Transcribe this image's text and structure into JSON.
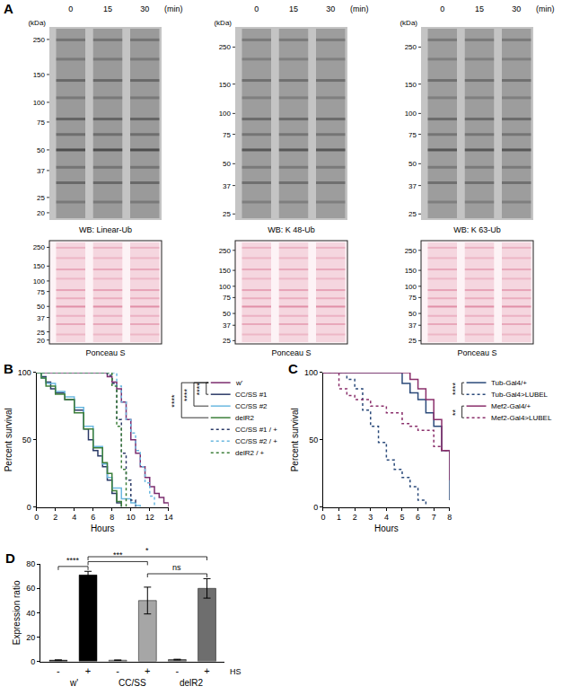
{
  "blots": {
    "label": "A",
    "times": [
      "0",
      "15",
      "30"
    ],
    "time_unit": "(min)",
    "kda_label": "(kDa)",
    "panels": [
      {
        "caption": "WB: Linear-Ub",
        "markers": [
          250,
          150,
          100,
          75,
          50,
          37,
          25,
          20
        ],
        "range": [
          300,
          18
        ],
        "color": "#2e2e2e",
        "ponceau": {
          "caption": "Ponceau S",
          "markers": [
            250,
            150,
            100,
            75,
            50,
            37,
            25,
            20
          ],
          "range": [
            300,
            18
          ],
          "color": "#d9708f"
        }
      },
      {
        "caption": "WB: K 48-Ub",
        "markers": [
          250,
          150,
          100,
          75,
          50,
          37,
          25
        ],
        "range": [
          330,
          23
        ],
        "color": "#3a3a3a",
        "ponceau": {
          "caption": "Ponceau S",
          "markers": [
            250,
            150,
            100,
            75,
            50,
            37,
            25
          ],
          "range": [
            320,
            23
          ],
          "color": "#d9708f"
        }
      },
      {
        "caption": "WB: K 63-Ub",
        "markers": [
          250,
          150,
          100,
          75,
          50,
          37,
          25
        ],
        "range": [
          330,
          23
        ],
        "color": "#3a3a3a",
        "ponceau": {
          "caption": "Ponceau S",
          "markers": [
            250,
            150,
            100,
            75,
            50,
            37,
            25
          ],
          "range": [
            320,
            23
          ],
          "color": "#d9708f"
        }
      }
    ]
  },
  "chart_data": [
    {
      "label": "B",
      "type": "step",
      "x_label": "Hours",
      "y_label": "Percent survival",
      "xlim": [
        0,
        14
      ],
      "xticks": [
        0,
        2,
        4,
        6,
        8,
        10,
        12,
        14
      ],
      "ylim": [
        0,
        100
      ],
      "yticks": [
        0,
        50,
        100
      ],
      "grid": false,
      "legend": "right",
      "series": [
        {
          "name": "w'",
          "color": "#7b2d6e",
          "line_style": "solid",
          "x": [
            0,
            7,
            7.5,
            8,
            8.5,
            9,
            9.5,
            10,
            10.5,
            11,
            11.5,
            12,
            12.5,
            13,
            13.5,
            14
          ],
          "values": [
            100,
            100,
            97,
            93,
            88,
            78,
            65,
            50,
            40,
            30,
            22,
            15,
            10,
            7,
            3,
            0
          ]
        },
        {
          "name": "CC/SS #1",
          "color": "#2b3a67",
          "line_style": "solid",
          "x": [
            0,
            0.5,
            1,
            1.5,
            2,
            3,
            4,
            5,
            5.5,
            6,
            6.5,
            7,
            7.5,
            8,
            8.5,
            9
          ],
          "values": [
            100,
            97,
            93,
            88,
            85,
            80,
            72,
            58,
            50,
            42,
            38,
            30,
            20,
            10,
            3,
            0
          ]
        },
        {
          "name": "CC/SS #2",
          "color": "#6bb8e0",
          "line_style": "solid",
          "x": [
            0,
            0.5,
            1,
            2,
            3,
            4,
            5,
            6,
            7,
            7.5,
            8,
            9,
            10,
            10.5,
            11
          ],
          "values": [
            100,
            96,
            92,
            86,
            82,
            74,
            60,
            45,
            32,
            22,
            14,
            6,
            3,
            1,
            0
          ]
        },
        {
          "name": "delR2",
          "color": "#3d7f3a",
          "line_style": "solid",
          "x": [
            0,
            0.5,
            1,
            2,
            3,
            4,
            5,
            6,
            7,
            7.5,
            8,
            8.5,
            9
          ],
          "values": [
            100,
            96,
            90,
            84,
            80,
            70,
            58,
            44,
            33,
            25,
            12,
            4,
            0
          ]
        },
        {
          "name": "CC/SS #1 / +",
          "color": "#2b3a67",
          "line_style": "dotted",
          "x": [
            0,
            7,
            7.5,
            8,
            8.5,
            9,
            9.5,
            10,
            10.5
          ],
          "values": [
            100,
            100,
            98,
            92,
            65,
            40,
            20,
            5,
            0
          ]
        },
        {
          "name": "CC/SS #2 / +",
          "color": "#6bb8e0",
          "line_style": "dotted",
          "x": [
            0,
            8,
            8.5,
            9,
            9.5,
            10,
            10.5,
            11,
            11.5,
            12,
            12.5
          ],
          "values": [
            100,
            100,
            90,
            78,
            65,
            55,
            42,
            30,
            18,
            8,
            0
          ]
        },
        {
          "name": "delR2 / +",
          "color": "#3d7f3a",
          "line_style": "dotted",
          "x": [
            0,
            7.5,
            8,
            8.5,
            9,
            9.5
          ],
          "values": [
            100,
            100,
            90,
            60,
            28,
            0
          ]
        }
      ],
      "annotations": [
        {
          "text": "****",
          "from": "w'",
          "to": "CC/SS #1"
        },
        {
          "text": "****",
          "from": "w'",
          "to": "CC/SS #2"
        },
        {
          "text": "****",
          "from": "w'",
          "to": "delR2"
        }
      ]
    },
    {
      "label": "C",
      "type": "step",
      "x_label": "Hours",
      "y_label": "Percent survival",
      "xlim": [
        0,
        8
      ],
      "xticks": [
        0,
        1,
        2,
        3,
        4,
        5,
        6,
        7,
        8
      ],
      "ylim": [
        0,
        100
      ],
      "yticks": [
        0,
        50,
        100
      ],
      "grid": false,
      "legend": "right",
      "series": [
        {
          "name": "Tub-Gal4/+",
          "color": "#2b4a7a",
          "line_style": "solid",
          "x": [
            0,
            4.5,
            5,
            5.5,
            6,
            6.5,
            7,
            7.5,
            8
          ],
          "values": [
            100,
            100,
            92,
            85,
            80,
            70,
            60,
            42,
            5
          ]
        },
        {
          "name": "Tub-Gal4>LUBEL",
          "color": "#2b4a7a",
          "line_style": "dotted",
          "x": [
            0,
            1,
            1.5,
            2,
            2.5,
            3,
            3.5,
            4,
            4.5,
            5,
            5.5,
            6,
            6.5
          ],
          "values": [
            100,
            100,
            95,
            88,
            72,
            60,
            48,
            35,
            28,
            22,
            15,
            5,
            0
          ]
        },
        {
          "name": "Mef2-Gal4/+",
          "color": "#8a2f6b",
          "line_style": "solid",
          "x": [
            0,
            5,
            5.5,
            6,
            6.5,
            7,
            7.5,
            8
          ],
          "values": [
            100,
            100,
            95,
            88,
            80,
            65,
            42,
            20
          ]
        },
        {
          "name": "Mef2-Gal4>LUBEL",
          "color": "#8a2f6b",
          "line_style": "dotted",
          "x": [
            0,
            1,
            1.5,
            2,
            3,
            4,
            5,
            5.5,
            6,
            7,
            7.5,
            8
          ],
          "values": [
            100,
            88,
            83,
            80,
            75,
            70,
            62,
            60,
            57,
            45,
            42,
            40
          ]
        }
      ],
      "annotations": [
        {
          "text": "****",
          "from": "Tub-Gal4/+",
          "to": "Tub-Gal4>LUBEL"
        },
        {
          "text": "**",
          "from": "Mef2-Gal4/+",
          "to": "Mef2-Gal4>LUBEL"
        }
      ]
    },
    {
      "label": "D",
      "type": "bar",
      "y_label": "Expression ratio",
      "x_label": "HS",
      "categories": [
        "-",
        "+",
        "-",
        "+",
        "-",
        "+"
      ],
      "groups": [
        {
          "label": "w'",
          "from": 0,
          "to": 1
        },
        {
          "label": "CC/SS",
          "from": 2,
          "to": 3
        },
        {
          "label": "delR2",
          "from": 4,
          "to": 5
        }
      ],
      "values": [
        1,
        71,
        1,
        50,
        1.5,
        60
      ],
      "errors": [
        0.3,
        3,
        0.2,
        11,
        0.3,
        8
      ],
      "colors": [
        "#000000",
        "#000000",
        "#a6a6a6",
        "#a6a6a6",
        "#6e6e6e",
        "#6e6e6e"
      ],
      "ylim": [
        0,
        80
      ],
      "yticks": [
        0,
        20,
        40,
        60,
        80
      ],
      "grid": false,
      "annotations": [
        {
          "text": "ns",
          "from": 3,
          "to": 5
        },
        {
          "text": "****",
          "from": 0,
          "to": 1
        },
        {
          "text": "***",
          "from": 1,
          "to": 3
        },
        {
          "text": "*",
          "from": 1,
          "to": 5
        }
      ]
    }
  ]
}
